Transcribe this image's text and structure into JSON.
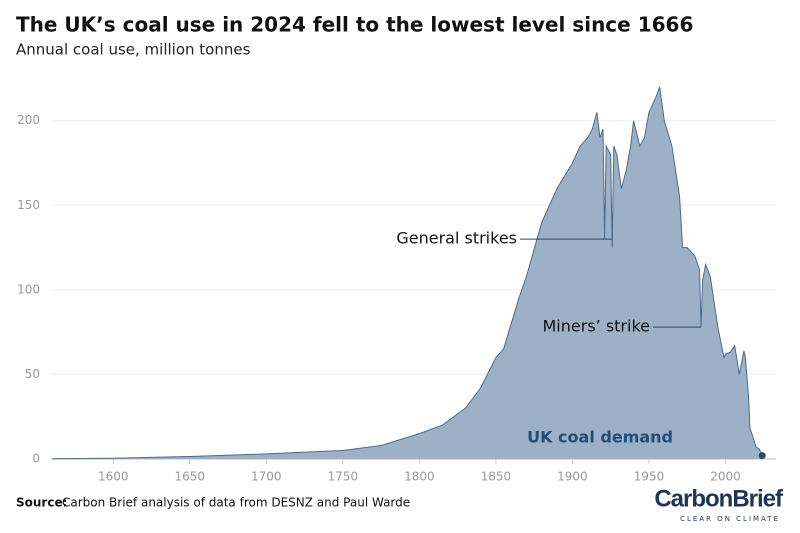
{
  "chart_data": {
    "type": "area",
    "title": "The UK’s coal use in 2024 fell to the lowest level since 1666",
    "subtitle": "Annual coal use, million tonnes",
    "source_label": "Source:",
    "source": "Carbon Brief analysis of data from DESNZ and Paul Warde",
    "logo": "CarbonBrief",
    "logo_tagline": "CLEAR ON CLIMATE",
    "x": [
      1560,
      1600,
      1650,
      1700,
      1750,
      1775,
      1800,
      1815,
      1830,
      1840,
      1850,
      1855,
      1860,
      1865,
      1870,
      1880,
      1890,
      1900,
      1905,
      1910,
      1913,
      1916,
      1918,
      1920,
      1921,
      1922,
      1925,
      1926,
      1927,
      1929,
      1932,
      1935,
      1938,
      1940,
      1944,
      1947,
      1950,
      1955,
      1957,
      1960,
      1965,
      1970,
      1972,
      1975,
      1980,
      1983,
      1984,
      1985,
      1987,
      1990,
      1993,
      1995,
      1999,
      2000,
      2003,
      2006,
      2009,
      2012,
      2013,
      2015,
      2016,
      2018,
      2020,
      2022,
      2024
    ],
    "series": [
      {
        "name": "UK coal demand",
        "color": "#9cb1c6",
        "line_color": "#4d6b8a",
        "label_color": "#1f4e79",
        "values": [
          0.2,
          0.5,
          1.5,
          3,
          5,
          8,
          15,
          20,
          30,
          42,
          60,
          65,
          80,
          95,
          108,
          140,
          160,
          175,
          185,
          190,
          195,
          205,
          190,
          195,
          130,
          185,
          180,
          125,
          185,
          180,
          160,
          170,
          185,
          200,
          185,
          190,
          205,
          215,
          220,
          200,
          185,
          155,
          125,
          125,
          120,
          112,
          78,
          105,
          115,
          108,
          90,
          78,
          60,
          62,
          63,
          67,
          50,
          64,
          60,
          38,
          18,
          13,
          7,
          6,
          2
        ]
      }
    ],
    "xlim": [
      1560,
      2033
    ],
    "ylim": [
      0,
      230
    ],
    "xticks": [
      1600,
      1650,
      1700,
      1750,
      1800,
      1850,
      1900,
      1950,
      2000
    ],
    "yticks": [
      0,
      50,
      100,
      150,
      200
    ],
    "grid": true,
    "annotations": [
      {
        "text": "General strikes",
        "x": 1926,
        "y": 130
      },
      {
        "text": "Miners’ strike",
        "x": 1984,
        "y": 78
      }
    ]
  }
}
